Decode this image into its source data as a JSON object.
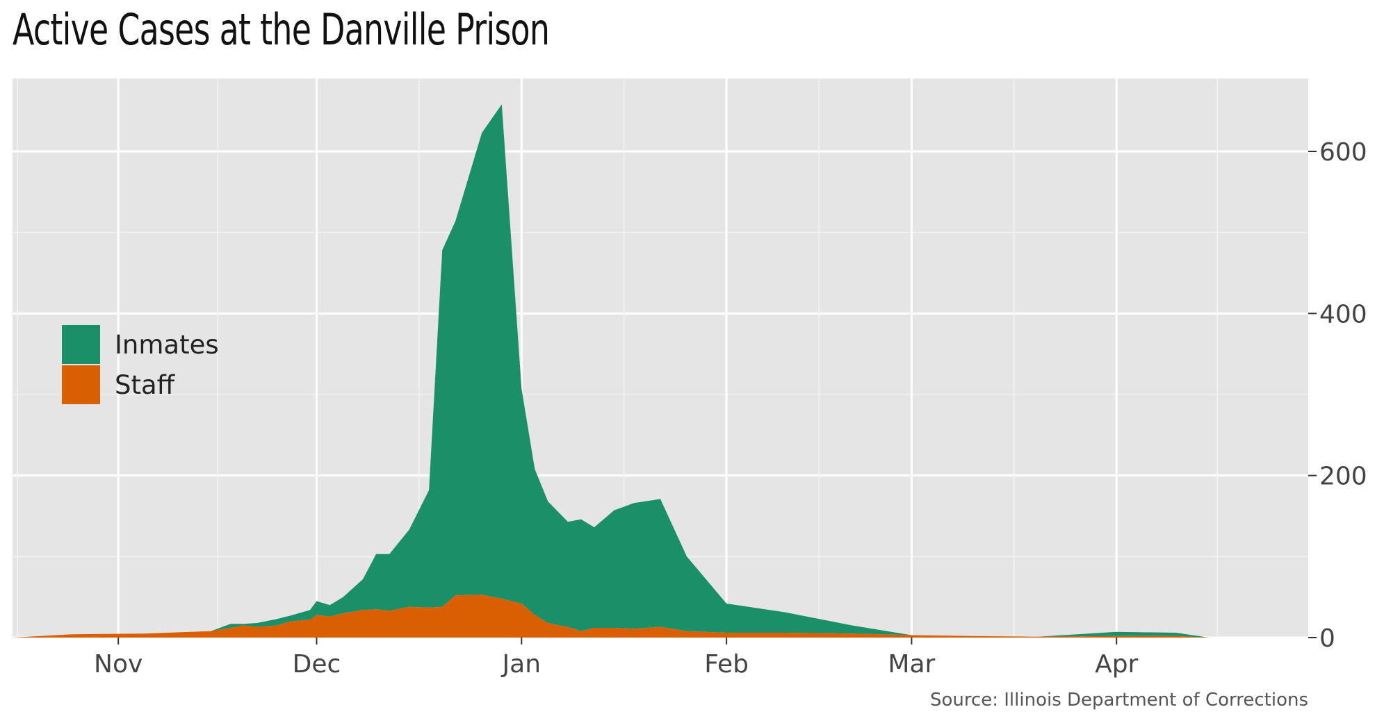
{
  "chart_data": {
    "type": "area",
    "stacked": true,
    "title": "Active Cases at the Danville Prison",
    "source": "Source: Illinois Department of Corrections",
    "xlabel": "",
    "ylabel": "",
    "x_range": [
      "2020-10-16",
      "2021-04-30"
    ],
    "ylim": [
      0,
      690
    ],
    "y_ticks": [
      0,
      200,
      400,
      600
    ],
    "y_axis_position": "right",
    "x_ticks": [
      {
        "date": "2020-11-01",
        "label": "Nov"
      },
      {
        "date": "2020-12-01",
        "label": "Dec"
      },
      {
        "date": "2021-01-01",
        "label": "Jan"
      },
      {
        "date": "2021-02-01",
        "label": "Feb"
      },
      {
        "date": "2021-03-01",
        "label": "Mar"
      },
      {
        "date": "2021-04-01",
        "label": "Apr"
      }
    ],
    "grid": true,
    "legend_position": "left",
    "series": [
      {
        "name": "Staff",
        "color": "#d95f02",
        "points": [
          [
            "2020-10-16",
            0
          ],
          [
            "2020-10-25",
            4
          ],
          [
            "2020-11-05",
            5
          ],
          [
            "2020-11-15",
            8
          ],
          [
            "2020-11-18",
            12
          ],
          [
            "2020-11-20",
            15
          ],
          [
            "2020-11-22",
            13
          ],
          [
            "2020-11-25",
            15
          ],
          [
            "2020-11-27",
            20
          ],
          [
            "2020-11-30",
            22
          ],
          [
            "2020-12-01",
            28
          ],
          [
            "2020-12-03",
            26
          ],
          [
            "2020-12-05",
            30
          ],
          [
            "2020-12-08",
            34
          ],
          [
            "2020-12-10",
            35
          ],
          [
            "2020-12-12",
            33
          ],
          [
            "2020-12-15",
            38
          ],
          [
            "2020-12-18",
            37
          ],
          [
            "2020-12-20",
            38
          ],
          [
            "2020-12-22",
            52
          ],
          [
            "2020-12-26",
            53
          ],
          [
            "2020-12-29",
            48
          ],
          [
            "2021-01-01",
            42
          ],
          [
            "2021-01-03",
            28
          ],
          [
            "2021-01-05",
            18
          ],
          [
            "2021-01-08",
            13
          ],
          [
            "2021-01-10",
            8
          ],
          [
            "2021-01-12",
            12
          ],
          [
            "2021-01-15",
            12
          ],
          [
            "2021-01-18",
            11
          ],
          [
            "2021-01-22",
            13
          ],
          [
            "2021-01-26",
            8
          ],
          [
            "2021-02-01",
            6
          ],
          [
            "2021-02-10",
            6
          ],
          [
            "2021-02-20",
            5
          ],
          [
            "2021-03-01",
            3
          ],
          [
            "2021-03-10",
            2
          ],
          [
            "2021-03-20",
            1
          ],
          [
            "2021-04-01",
            2
          ],
          [
            "2021-04-10",
            2
          ],
          [
            "2021-04-15",
            0
          ],
          [
            "2021-04-30",
            0
          ]
        ]
      },
      {
        "name": "Inmates",
        "color": "#1b9068",
        "points": [
          [
            "2020-10-16",
            0
          ],
          [
            "2020-10-25",
            0
          ],
          [
            "2020-11-05",
            0
          ],
          [
            "2020-11-15",
            0
          ],
          [
            "2020-11-18",
            5
          ],
          [
            "2020-11-20",
            2
          ],
          [
            "2020-11-22",
            5
          ],
          [
            "2020-11-25",
            8
          ],
          [
            "2020-11-27",
            7
          ],
          [
            "2020-11-30",
            12
          ],
          [
            "2020-12-01",
            17
          ],
          [
            "2020-12-03",
            14
          ],
          [
            "2020-12-05",
            20
          ],
          [
            "2020-12-08",
            38
          ],
          [
            "2020-12-10",
            68
          ],
          [
            "2020-12-12",
            70
          ],
          [
            "2020-12-15",
            95
          ],
          [
            "2020-12-18",
            145
          ],
          [
            "2020-12-20",
            440
          ],
          [
            "2020-12-22",
            462
          ],
          [
            "2020-12-26",
            570
          ],
          [
            "2020-12-29",
            610
          ],
          [
            "2021-01-01",
            265
          ],
          [
            "2021-01-03",
            180
          ],
          [
            "2021-01-05",
            150
          ],
          [
            "2021-01-08",
            130
          ],
          [
            "2021-01-10",
            138
          ],
          [
            "2021-01-12",
            124
          ],
          [
            "2021-01-15",
            145
          ],
          [
            "2021-01-18",
            155
          ],
          [
            "2021-01-22",
            158
          ],
          [
            "2021-01-26",
            92
          ],
          [
            "2021-02-01",
            36
          ],
          [
            "2021-02-10",
            25
          ],
          [
            "2021-02-20",
            10
          ],
          [
            "2021-03-01",
            0
          ],
          [
            "2021-03-10",
            0
          ],
          [
            "2021-03-20",
            0
          ],
          [
            "2021-04-01",
            5
          ],
          [
            "2021-04-10",
            4
          ],
          [
            "2021-04-15",
            0
          ],
          [
            "2021-04-30",
            0
          ]
        ]
      }
    ]
  }
}
